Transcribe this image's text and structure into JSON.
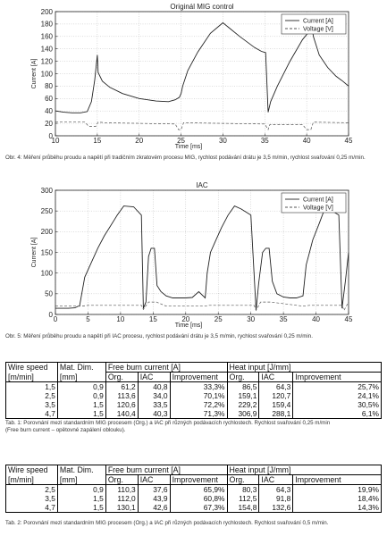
{
  "chart_data": [
    {
      "type": "line",
      "title": "Originál MIG control",
      "xlabel": "Time [ms]",
      "ylabel": "Current [A]",
      "xlim": [
        10,
        45
      ],
      "ylim": [
        0,
        200
      ],
      "xticks": [
        10,
        15,
        20,
        25,
        30,
        35,
        40,
        45
      ],
      "yticks": [
        0,
        20,
        40,
        60,
        80,
        100,
        120,
        140,
        160,
        180,
        200
      ],
      "grid": true,
      "legend": "top-right",
      "series": [
        {
          "name": "Current [A]",
          "style": "solid",
          "color": "#222222",
          "x": [
            10,
            11,
            12,
            13,
            13.8,
            14.3,
            14.7,
            15.0,
            15.1,
            15.6,
            16.5,
            18,
            20,
            22,
            23.5,
            24.3,
            24.8,
            25.0,
            25.2,
            25.8,
            27,
            28.5,
            30,
            32,
            33.8,
            34.6,
            35.1,
            35.4,
            35.7,
            36.5,
            38,
            39.5,
            40.3,
            40.6,
            40.8,
            41.5,
            42.5,
            43.5,
            44.3,
            45
          ],
          "y": [
            40,
            38,
            37,
            37,
            39,
            55,
            90,
            130,
            102,
            88,
            78,
            68,
            60,
            56,
            55,
            58,
            62,
            68,
            80,
            105,
            135,
            165,
            182,
            160,
            142,
            136,
            134,
            38,
            55,
            80,
            120,
            155,
            168,
            178,
            160,
            130,
            110,
            96,
            88,
            80
          ]
        },
        {
          "name": "Voltage [V]",
          "style": "dashed",
          "color": "#555555",
          "x": [
            10,
            13.5,
            14.0,
            14.8,
            15.1,
            16,
            20,
            24.3,
            24.7,
            25.0,
            25.3,
            30,
            35.0,
            35.4,
            35.6,
            39.5,
            40.0,
            40.5,
            40.8,
            45
          ],
          "y": [
            22,
            22,
            15,
            15,
            22,
            21,
            20,
            19,
            10,
            10,
            21,
            20,
            19,
            10,
            18,
            18,
            10,
            10,
            22,
            21
          ]
        }
      ]
    },
    {
      "type": "line",
      "title": "IAC",
      "xlabel": "Time [ms]",
      "ylabel": "Current [A]",
      "xlim": [
        0,
        45
      ],
      "ylim": [
        0,
        300
      ],
      "xticks": [
        0,
        5,
        10,
        15,
        20,
        25,
        30,
        35,
        40,
        45
      ],
      "yticks": [
        0,
        50,
        100,
        150,
        200,
        250,
        300
      ],
      "grid": true,
      "legend": "top-right",
      "series": [
        {
          "name": "Current [A]",
          "style": "solid",
          "color": "#222222",
          "x": [
            0,
            1,
            2,
            3,
            3.5,
            3.7,
            4.5,
            5.5,
            6.5,
            7.5,
            8.5,
            9.5,
            10.5,
            12,
            13.2,
            13.5,
            13.9,
            14.3,
            14.7,
            15.2,
            15.6,
            16.2,
            17,
            18,
            19,
            20,
            21,
            22,
            23,
            23.3,
            23.8,
            24.5,
            25.5,
            26.5,
            27.5,
            28.5,
            30,
            30.8,
            31.2,
            31.8,
            32.3,
            32.8,
            33.3,
            34,
            35,
            36,
            37,
            38,
            38.5,
            39,
            39.5,
            40.5,
            41.5,
            42.5,
            43.5,
            44,
            44.5,
            45
          ],
          "y": [
            15,
            15,
            15,
            16,
            20,
            20,
            90,
            125,
            160,
            190,
            215,
            240,
            262,
            260,
            240,
            15,
            30,
            140,
            160,
            160,
            70,
            55,
            45,
            40,
            40,
            40,
            41,
            55,
            40,
            100,
            150,
            175,
            210,
            240,
            262,
            255,
            240,
            10,
            75,
            150,
            160,
            160,
            80,
            50,
            42,
            40,
            40,
            45,
            120,
            150,
            180,
            220,
            262,
            250,
            240,
            15,
            80,
            150
          ]
        },
        {
          "name": "Voltage [V]",
          "style": "dashed",
          "color": "#555555",
          "x": [
            0,
            4,
            5,
            13.2,
            13.5,
            14.3,
            15.5,
            17,
            22,
            23,
            23.5,
            30.5,
            30.8,
            31.5,
            33,
            38,
            39,
            44,
            44.3,
            45
          ],
          "y": [
            20,
            20,
            22,
            22,
            12,
            30,
            30,
            20,
            20,
            20,
            22,
            22,
            10,
            30,
            30,
            20,
            22,
            22,
            10,
            30
          ]
        }
      ]
    }
  ],
  "captions": {
    "fig1": "Obr. 4: Měření průběhu proudu a napětí při tradičním zkratovém procesu MIG, rychlost podávání drátu je 3,5 m/min, rychlost svařování 0,25 m/min.",
    "fig2": "Obr. 5: Měření průběhu proudu a napětí při IAC procesu, rychlost podávání drátu je 3,5 m/min, rychlost svařování 0,25 m/min.",
    "tab1_line1": "Tab. 1: Porovnání mezi standardním MIG procesem (Org.) a IAC při různých podávacích rychlostech. Rychlost svařování 0,25 m/min",
    "tab1_line2": "(Free burn current – opětovné zapálení oblouku).",
    "tab2": "Tab. 2: Porovnání mezi standardním MIG procesem (Org.) a IAC při různých podávacích rychlostech. Rychlost svařování 0,5 m/min."
  },
  "table_headers": {
    "wire_speed": "Wire speed",
    "wire_speed_unit": "[m/min]",
    "mat_dim": "Mat. Dim.",
    "mat_dim_unit": "[mm]",
    "free_burn": "Free burn current [A]",
    "heat_input": "Heat input [J/mm]",
    "org": "Org.",
    "iac": "IAC",
    "improvement": "Improvement"
  },
  "table1": {
    "rows": [
      [
        "1,5",
        "0,9",
        "61,2",
        "40,8",
        "33,3%",
        "86,5",
        "64,3",
        "25,7%"
      ],
      [
        "2,5",
        "0,9",
        "113,6",
        "34,0",
        "70,1%",
        "159,1",
        "120,7",
        "24,1%"
      ],
      [
        "3,5",
        "1,5",
        "120,6",
        "33,5",
        "72,2%",
        "229,2",
        "159,4",
        "30,5%"
      ],
      [
        "4,7",
        "1,5",
        "140,4",
        "40,3",
        "71,3%",
        "306,9",
        "288,1",
        "6,1%"
      ]
    ]
  },
  "table2": {
    "rows": [
      [
        "2,5",
        "0,9",
        "110,3",
        "37,6",
        "65,9%",
        "80,3",
        "64,3",
        "19,9%"
      ],
      [
        "3,5",
        "1,5",
        "112,0",
        "43,9",
        "60,8%",
        "112,5",
        "91,8",
        "18,4%"
      ],
      [
        "4,7",
        "1,5",
        "130,1",
        "42,6",
        "67,3%",
        "154,8",
        "132,6",
        "14,3%"
      ]
    ]
  }
}
